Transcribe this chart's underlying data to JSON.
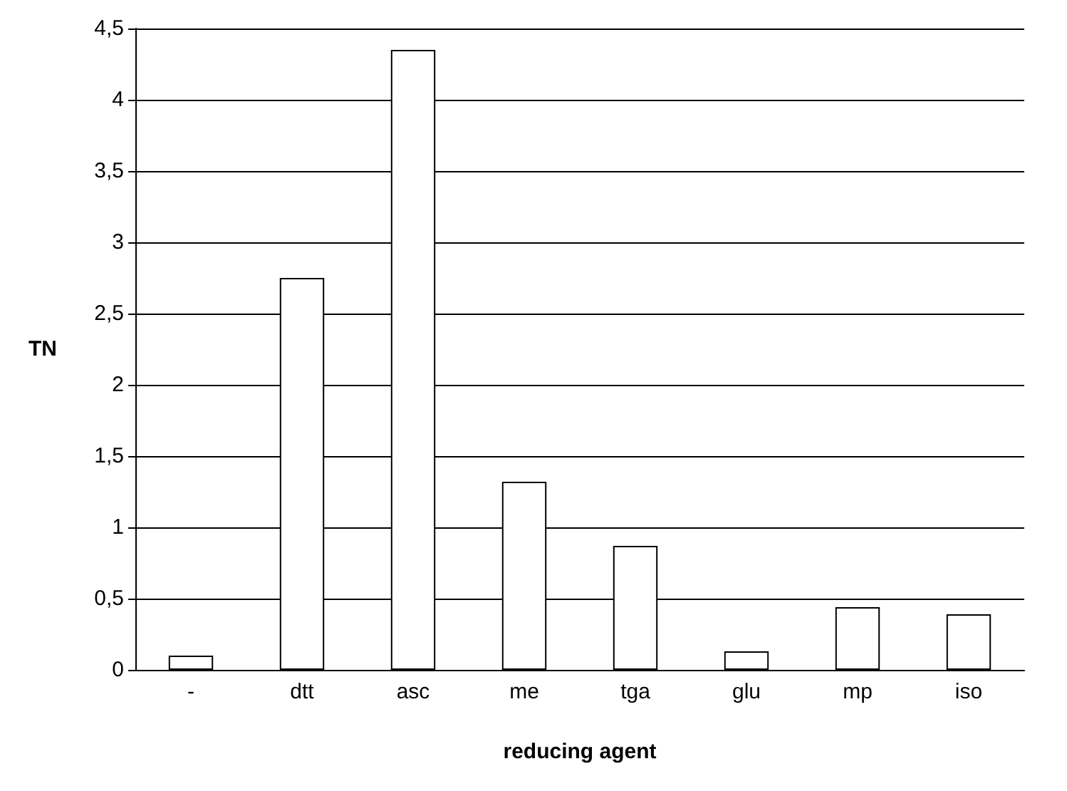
{
  "chart_data": {
    "type": "bar",
    "xlabel": "reducing agent",
    "ylabel": "TN",
    "categories": [
      "-",
      "dtt",
      "asc",
      "me",
      "tga",
      "glu",
      "mp",
      "iso"
    ],
    "values": [
      0.1,
      2.75,
      4.35,
      1.32,
      0.87,
      0.13,
      0.44,
      0.39
    ],
    "color": "#ffffff",
    "ylim": [
      0,
      4.5
    ],
    "yticks": [
      0,
      {
        "value": 0.5,
        "label": "0,5"
      },
      1,
      {
        "value": 1.5,
        "label": "1,5"
      },
      2,
      {
        "value": 2.5,
        "label": "2,5"
      },
      3,
      {
        "value": 3.5,
        "label": "3,5"
      },
      4,
      {
        "value": 4.5,
        "label": "4,5"
      }
    ],
    "grid": true
  }
}
